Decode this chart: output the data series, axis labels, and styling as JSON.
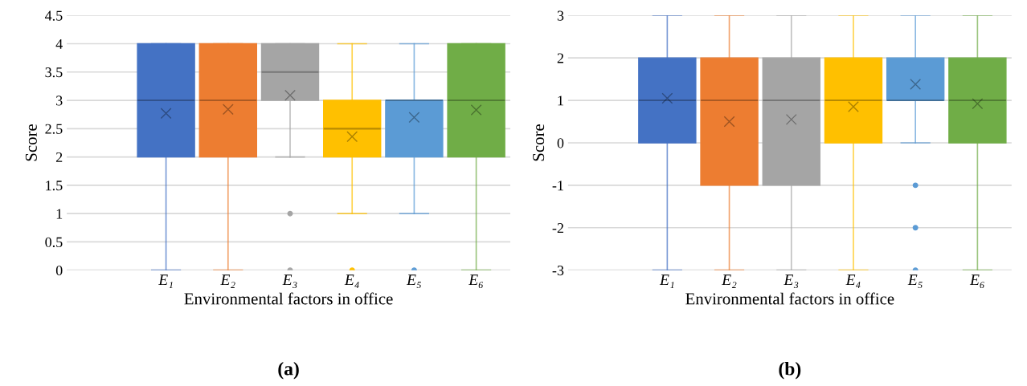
{
  "chart_data": [
    {
      "type": "box",
      "xlabel": "Environmental factors in office",
      "ylabel": "Score",
      "categories": [
        "E₁",
        "E₂",
        "E₃",
        "E₄",
        "E₅",
        "E₆"
      ],
      "colors": [
        "#4472c4",
        "#ed7d31",
        "#a5a5a5",
        "#ffc000",
        "#5b9bd5",
        "#70ad47"
      ],
      "boxes": [
        {
          "low": 0,
          "q1": 2,
          "median": 3,
          "q3": 4,
          "high": 4,
          "mean": 2.77
        },
        {
          "low": 0,
          "q1": 2,
          "median": 3,
          "q3": 4,
          "high": 4,
          "mean": 2.84
        },
        {
          "low": 2,
          "q1": 3,
          "median": 3.5,
          "q3": 4,
          "high": 4,
          "mean": 3.09,
          "outliers": [
            1,
            0
          ]
        },
        {
          "low": 1,
          "q1": 2,
          "median": 2.5,
          "q3": 3,
          "high": 4,
          "mean": 2.36,
          "outliers": [
            0
          ]
        },
        {
          "low": 1,
          "q1": 2,
          "median": 3,
          "q3": 3,
          "high": 4,
          "mean": 2.7,
          "outliers": [
            0
          ]
        },
        {
          "low": 0,
          "q1": 2,
          "median": 3,
          "q3": 4,
          "high": 4,
          "mean": 2.83
        }
      ],
      "ylim": [
        0,
        4.5
      ],
      "yticks": [
        0,
        0.5,
        1,
        1.5,
        2,
        2.5,
        3,
        3.5,
        4,
        4.5
      ],
      "grid": "y",
      "annotations": [
        "(a)"
      ]
    },
    {
      "type": "box",
      "xlabel": "Environmental factors in office",
      "ylabel": "Score",
      "categories": [
        "E₁",
        "E₂",
        "E₃",
        "E₄",
        "E₅",
        "E₆"
      ],
      "colors": [
        "#4472c4",
        "#ed7d31",
        "#a5a5a5",
        "#ffc000",
        "#5b9bd5",
        "#70ad47"
      ],
      "boxes": [
        {
          "low": -3,
          "q1": 0,
          "median": 1,
          "q3": 2,
          "high": 3,
          "mean": 1.05
        },
        {
          "low": -3,
          "q1": -1,
          "median": 1,
          "q3": 2,
          "high": 3,
          "mean": 0.5
        },
        {
          "low": -3,
          "q1": -1,
          "median": 1,
          "q3": 2,
          "high": 3,
          "mean": 0.55
        },
        {
          "low": -3,
          "q1": 0,
          "median": 1,
          "q3": 2,
          "high": 3,
          "mean": 0.85
        },
        {
          "low": 0,
          "q1": 1,
          "median": 1,
          "q3": 2,
          "high": 3,
          "mean": 1.38,
          "outliers": [
            -1,
            -2,
            -3
          ]
        },
        {
          "low": -3,
          "q1": 0,
          "median": 1,
          "q3": 2,
          "high": 3,
          "mean": 0.92
        }
      ],
      "ylim": [
        -3,
        3
      ],
      "yticks": [
        -3,
        -2,
        -1,
        0,
        1,
        2,
        3
      ],
      "grid": "y",
      "annotations": [
        "(b)"
      ]
    }
  ]
}
